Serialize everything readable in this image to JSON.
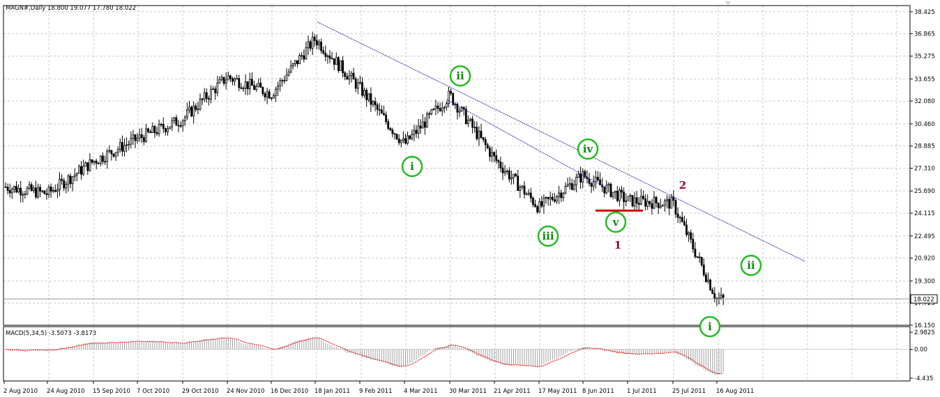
{
  "header": {
    "main_info": "MAGN#,Daily  18.800 19.077 17.780 18.022",
    "macd_info": "MACD(5,34,5) -3.5073 -3.8173"
  },
  "chart_data": [
    {
      "type": "candlestick",
      "title": "MAGN#,Daily",
      "ohlc": {
        "open": 18.8,
        "high": 19.077,
        "low": 17.78,
        "close": 18.022
      },
      "ylim": [
        16.15,
        38.425
      ],
      "y_ticks": [
        "38.425",
        "36.865",
        "35.275",
        "33.655",
        "32.080",
        "30.460",
        "28.885",
        "27.310",
        "25.690",
        "24.115",
        "22.495",
        "20.920",
        "19.300",
        "17.725",
        "16.150"
      ],
      "last_price": "18.022",
      "x_ticks": [
        "2 Aug 2010",
        "24 Aug 2010",
        "15 Sep 2010",
        "7 Oct 2010",
        "29 Oct 2010",
        "24 Nov 2010",
        "16 Dec 2010",
        "18 Jan 2011",
        "9 Feb 2011",
        "4 Mar 2011",
        "30 Mar 2011",
        "21 Apr 2011",
        "17 May 2011",
        "8 Jun 2011",
        "1 Jul 2011",
        "25 Jul 2011",
        "16 Aug 2011"
      ],
      "price_path": [
        [
          "2 Aug 2010",
          26.0
        ],
        [
          "24 Aug 2010",
          25.5
        ],
        [
          "15 Sep 2010",
          27.8
        ],
        [
          "7 Oct 2010",
          29.4
        ],
        [
          "29 Oct 2010",
          30.8
        ],
        [
          "24 Nov 2010",
          33.8
        ],
        [
          "16 Dec 2010",
          32.6
        ],
        [
          "18 Jan 2011",
          36.5
        ],
        [
          "9 Feb 2011",
          33.0
        ],
        [
          "4 Mar 2011",
          29.0
        ],
        [
          "30 Mar 2011",
          32.5
        ],
        [
          "21 Apr 2011",
          28.0
        ],
        [
          "17 May 2011",
          24.5
        ],
        [
          "8 Jun 2011",
          26.8
        ],
        [
          "1 Jul 2011",
          25.0
        ],
        [
          "25 Jul 2011",
          24.8
        ],
        [
          "16 Aug 2011",
          18.0
        ]
      ],
      "trendlines": [
        {
          "name": "upper",
          "from": [
            "18 Jan 2011",
            37.7
          ],
          "to": [
            "after 16 Aug 2011",
            20.7
          ]
        },
        {
          "name": "inner",
          "from": [
            "30 Mar 2011",
            32.2
          ],
          "to": [
            "8 Jun 2011",
            25.9
          ]
        }
      ],
      "support_line": {
        "value": 24.3,
        "from": "8 Jun 2011",
        "to": "1 Jul 2011",
        "color": "#cc0000"
      },
      "wave_labels": [
        {
          "text": "i",
          "style": "circle-green"
        },
        {
          "text": "ii",
          "style": "circle-green"
        },
        {
          "text": "iii",
          "style": "circle-green"
        },
        {
          "text": "iv",
          "style": "circle-green"
        },
        {
          "text": "v",
          "style": "circle-green"
        },
        {
          "text": "1",
          "style": "maroon"
        },
        {
          "text": "2",
          "style": "maroon"
        },
        {
          "text": "i",
          "style": "circle-green"
        },
        {
          "text": "ii",
          "style": "circle-green"
        }
      ]
    },
    {
      "type": "bar",
      "title": "MACD(5,34,5) -3.5073 -3.8173",
      "ylim": [
        -4.435,
        2.9825
      ],
      "y_ticks": [
        "2.9825",
        "0.00",
        "-4.435"
      ],
      "values": {
        "main": -3.5073,
        "signal": -3.8173
      }
    }
  ],
  "colors": {
    "candle_body_up": "#ffffff",
    "candle_body_down": "#000000",
    "trendline": "#3333aa",
    "wave_circle": "#22bb22",
    "wave_text": "#118811",
    "maroon_label": "#990033",
    "macd_signal": "#dd0000",
    "grid": "#c8c8c8"
  }
}
